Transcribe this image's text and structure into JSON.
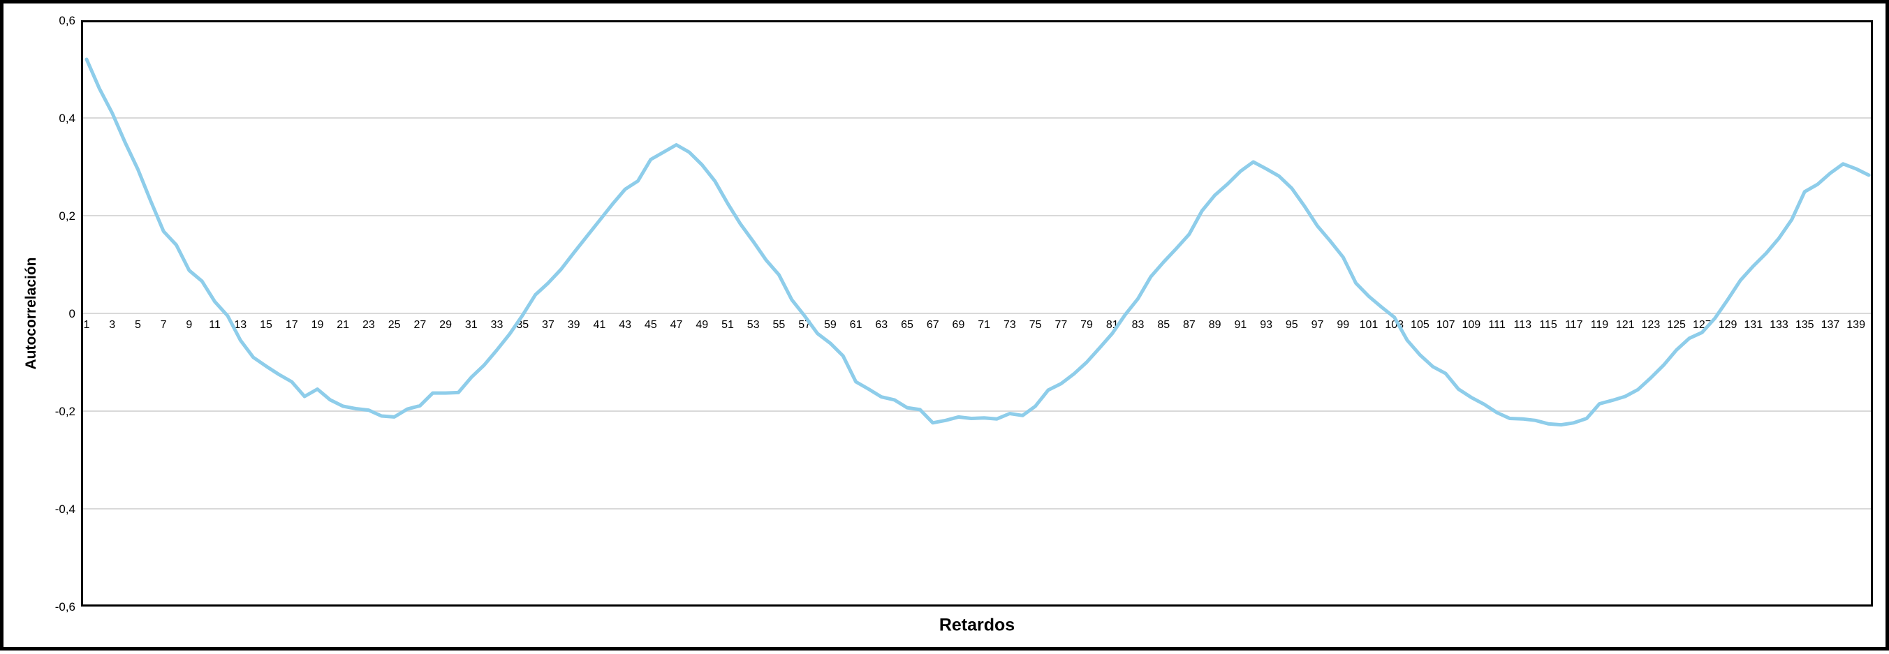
{
  "figure": {
    "title": "",
    "y_axis_title": "Autocorrelación",
    "x_axis_title": "Retardos"
  },
  "chart_data": {
    "type": "line",
    "title": "",
    "xlabel": "Retardos",
    "ylabel": "Autocorrelación",
    "ylim": [
      -0.6,
      0.6
    ],
    "grid": "horizontal",
    "legend_position": "none",
    "line_color": "#8ECDEA",
    "grid_color": "#D9D9D9",
    "axis_color": "#000000",
    "text_color": "#000000",
    "y_tick_labels": [
      "0,6",
      "0,4",
      "0,2",
      "0",
      "-0,2",
      "-0,4",
      "-0,6"
    ],
    "y_tick_values": [
      0.6,
      0.4,
      0.2,
      0,
      -0.2,
      -0.4,
      -0.6
    ],
    "gridline_values": [
      0.4,
      0.2,
      0,
      -0.2,
      -0.4
    ],
    "x_tick_labels": [
      "1",
      "3",
      "5",
      "7",
      "9",
      "11",
      "13",
      "15",
      "17",
      "19",
      "21",
      "23",
      "25",
      "27",
      "29",
      "31",
      "33",
      "35",
      "37",
      "39",
      "41",
      "43",
      "45",
      "47",
      "49",
      "51",
      "53",
      "55",
      "57",
      "59",
      "61",
      "63",
      "65",
      "67",
      "69",
      "71",
      "73",
      "75",
      "77",
      "79",
      "81",
      "83",
      "85",
      "87",
      "89",
      "91",
      "93",
      "95",
      "97",
      "99",
      "101",
      "103",
      "105",
      "107",
      "109",
      "111",
      "113",
      "115",
      "117",
      "119",
      "121",
      "123",
      "125",
      "127",
      "129",
      "131",
      "133",
      "135",
      "137",
      "139"
    ],
    "x": [
      1,
      2,
      3,
      4,
      5,
      6,
      7,
      8,
      9,
      10,
      11,
      12,
      13,
      14,
      15,
      16,
      17,
      18,
      19,
      20,
      21,
      22,
      23,
      24,
      25,
      26,
      27,
      28,
      29,
      30,
      31,
      32,
      33,
      34,
      35,
      36,
      37,
      38,
      39,
      40,
      41,
      42,
      43,
      44,
      45,
      46,
      47,
      48,
      49,
      50,
      51,
      52,
      53,
      54,
      55,
      56,
      57,
      58,
      59,
      60,
      61,
      62,
      63,
      64,
      65,
      66,
      67,
      68,
      69,
      70,
      71,
      72,
      73,
      74,
      75,
      76,
      77,
      78,
      79,
      80,
      81,
      82,
      83,
      84,
      85,
      86,
      87,
      88,
      89,
      90,
      91,
      92,
      93,
      94,
      95,
      96,
      97,
      98,
      99,
      100,
      101,
      102,
      103,
      104,
      105,
      106,
      107,
      108,
      109,
      110,
      111,
      112,
      113,
      114,
      115,
      116,
      117,
      118,
      119,
      120,
      121,
      122,
      123,
      124,
      125,
      126,
      127,
      128,
      129,
      130,
      131,
      132,
      133,
      134,
      135,
      136,
      137,
      138,
      139,
      140
    ],
    "values": [
      0.52,
      0.46,
      0.41,
      0.35,
      0.295,
      0.23,
      0.168,
      0.14,
      0.088,
      0.066,
      0.024,
      -0.005,
      -0.055,
      -0.09,
      -0.108,
      -0.125,
      -0.14,
      -0.17,
      -0.155,
      -0.177,
      -0.19,
      -0.195,
      -0.198,
      -0.21,
      -0.212,
      -0.196,
      -0.189,
      -0.163,
      -0.163,
      -0.162,
      -0.131,
      -0.106,
      -0.075,
      -0.042,
      -0.004,
      0.038,
      0.062,
      0.09,
      0.124,
      0.157,
      0.19,
      0.223,
      0.254,
      0.271,
      0.315,
      0.33,
      0.345,
      0.33,
      0.304,
      0.271,
      0.225,
      0.183,
      0.147,
      0.109,
      0.079,
      0.028,
      -0.005,
      -0.041,
      -0.061,
      -0.087,
      -0.14,
      -0.155,
      -0.171,
      -0.177,
      -0.193,
      -0.197,
      -0.224,
      -0.219,
      -0.212,
      -0.215,
      -0.214,
      -0.216,
      -0.205,
      -0.209,
      -0.19,
      -0.157,
      -0.144,
      -0.124,
      -0.1,
      -0.071,
      -0.041,
      -0.003,
      0.03,
      0.075,
      0.105,
      0.133,
      0.162,
      0.21,
      0.242,
      0.265,
      0.291,
      0.31,
      0.296,
      0.281,
      0.256,
      0.219,
      0.179,
      0.148,
      0.115,
      0.062,
      0.035,
      0.013,
      -0.008,
      -0.055,
      -0.085,
      -0.109,
      -0.123,
      -0.155,
      -0.172,
      -0.186,
      -0.203,
      -0.215,
      -0.216,
      -0.219,
      -0.226,
      -0.228,
      -0.224,
      -0.215,
      -0.185,
      -0.178,
      -0.17,
      -0.156,
      -0.132,
      -0.106,
      -0.075,
      -0.051,
      -0.039,
      -0.01,
      0.028,
      0.068,
      0.097,
      0.123,
      0.154,
      0.192,
      0.249,
      0.264,
      0.287,
      0.306,
      0.296,
      0.283
    ]
  }
}
